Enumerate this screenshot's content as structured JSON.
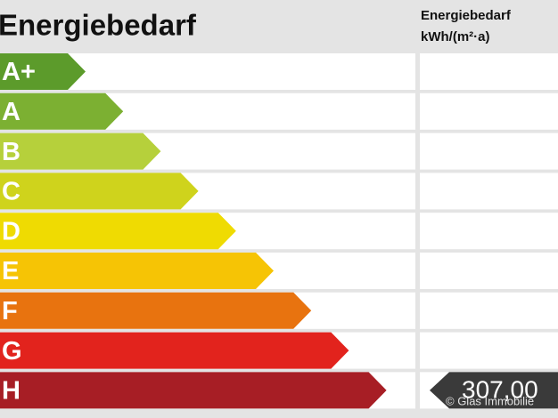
{
  "header": {
    "title": "Energiebedarf",
    "column_title_line1": "Energiebedarf",
    "column_title_line2": "kWh/(m²·a)"
  },
  "classes": [
    {
      "label": "A+",
      "color": "#5c9b2b"
    },
    {
      "label": "A",
      "color": "#7cb032"
    },
    {
      "label": "B",
      "color": "#b6d03b"
    },
    {
      "label": "C",
      "color": "#cfd31c"
    },
    {
      "label": "D",
      "color": "#efdb02"
    },
    {
      "label": "E",
      "color": "#f6c405"
    },
    {
      "label": "F",
      "color": "#e8730f"
    },
    {
      "label": "G",
      "color": "#e2231d"
    },
    {
      "label": "H",
      "color": "#a71e25"
    }
  ],
  "indicator": {
    "value_text": "307,00",
    "class_index": 8,
    "color": "#3a3a3a"
  },
  "watermark": "© Glas Immobilie"
}
